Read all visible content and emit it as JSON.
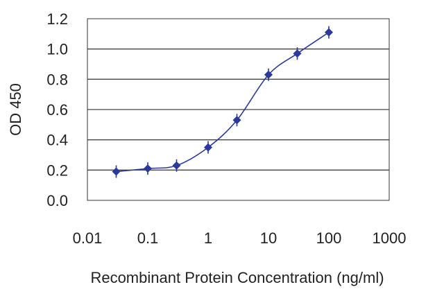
{
  "chart_data": {
    "type": "line",
    "title": "",
    "xlabel": "Recombinant Protein Concentration (ng/ml)",
    "ylabel": "OD 450",
    "x_scale": "log",
    "xlim": [
      0.01,
      1000
    ],
    "ylim": [
      0.0,
      1.2
    ],
    "x_ticks": [
      "0.01",
      "0.1",
      "1",
      "10",
      "100",
      "1000"
    ],
    "y_ticks": [
      "0.0",
      "0.2",
      "0.4",
      "0.6",
      "0.8",
      "1.0",
      "1.2"
    ],
    "grid": "horizontal",
    "legend": "none",
    "series": [
      {
        "x": [
          0.03,
          0.1,
          0.3,
          1,
          3,
          10,
          30,
          100
        ],
        "y": [
          0.19,
          0.21,
          0.23,
          0.35,
          0.53,
          0.83,
          0.97,
          1.11
        ],
        "color": "#2b3a9a"
      }
    ]
  }
}
